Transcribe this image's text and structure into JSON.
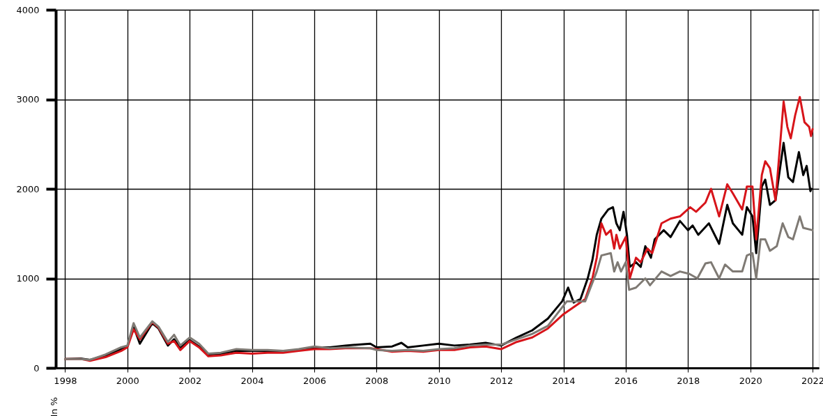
{
  "chart_data": {
    "type": "line",
    "ylabel": "In %",
    "xlim": [
      1997.7,
      2022.2
    ],
    "xticks": [
      1998,
      2000,
      2002,
      2004,
      2006,
      2008,
      2010,
      2012,
      2014,
      2016,
      2018,
      2020,
      2022
    ],
    "ylim": [
      0,
      4000
    ],
    "yticks": [
      0,
      1000,
      2000,
      3000,
      4000
    ],
    "grid": true,
    "marker": "none",
    "line_style": "solid",
    "series": [
      {
        "color": "#000000",
        "x": [
          1998.0,
          1998.5,
          1998.8,
          1999.3,
          1999.8,
          2000.0,
          2000.2,
          2000.4,
          2000.8,
          2001.0,
          2001.3,
          2001.5,
          2001.7,
          2002.0,
          2002.3,
          2002.6,
          2003.0,
          2003.5,
          2004.0,
          2004.5,
          2005.0,
          2005.5,
          2006.0,
          2006.5,
          2007.0,
          2007.8,
          2008.0,
          2008.5,
          2008.8,
          2009.0,
          2009.5,
          2010.0,
          2010.5,
          2011.0,
          2011.5,
          2012.0,
          2012.5,
          2013.0,
          2013.5,
          2013.96,
          2014.15,
          2014.33,
          2014.55,
          2014.78,
          2014.93,
          2015.07,
          2015.22,
          2015.44,
          2015.59,
          2015.7,
          2015.81,
          2015.93,
          2016.04,
          2016.13,
          2016.33,
          2016.48,
          2016.63,
          2016.81,
          2016.93,
          2017.22,
          2017.44,
          2017.74,
          2018.0,
          2018.15,
          2018.33,
          2018.67,
          2019.0,
          2019.26,
          2019.44,
          2019.74,
          2019.89,
          2020.07,
          2020.19,
          2020.37,
          2020.48,
          2020.63,
          2020.81,
          2021.07,
          2021.22,
          2021.37,
          2021.56,
          2021.7,
          2021.81,
          2021.93,
          2021.96
        ],
        "values": [
          100,
          105,
          90,
          140,
          210,
          240,
          460,
          270,
          500,
          440,
          250,
          320,
          230,
          310,
          240,
          150,
          160,
          190,
          190,
          190,
          180,
          200,
          230,
          230,
          250,
          270,
          230,
          240,
          280,
          230,
          250,
          270,
          250,
          260,
          280,
          250,
          340,
          420,
          550,
          744,
          897,
          730,
          770,
          1000,
          1205,
          1487,
          1667,
          1769,
          1795,
          1615,
          1538,
          1744,
          1487,
          1128,
          1180,
          1128,
          1359,
          1231,
          1436,
          1538,
          1462,
          1641,
          1538,
          1590,
          1487,
          1615,
          1385,
          1821,
          1615,
          1487,
          1795,
          1692,
          1282,
          2026,
          2103,
          1821,
          1872,
          2513,
          2128,
          2077,
          2410,
          2154,
          2256,
          1974,
          2000
        ]
      },
      {
        "color": "#d7141a",
        "x": [
          1998.0,
          1998.5,
          1998.8,
          1999.3,
          1999.8,
          2000.0,
          2000.2,
          2000.4,
          2000.8,
          2001.0,
          2001.3,
          2001.5,
          2001.7,
          2002.0,
          2002.3,
          2002.6,
          2003.0,
          2003.5,
          2004.0,
          2004.5,
          2005.0,
          2005.5,
          2006.0,
          2006.5,
          2007.0,
          2007.8,
          2008.0,
          2008.5,
          2009.0,
          2009.5,
          2010.0,
          2010.5,
          2011.0,
          2011.5,
          2012.0,
          2012.5,
          2013.0,
          2013.5,
          2014.0,
          2014.7,
          2014.93,
          2015.07,
          2015.22,
          2015.37,
          2015.52,
          2015.63,
          2015.7,
          2015.81,
          2016.0,
          2016.13,
          2016.33,
          2016.48,
          2016.7,
          2016.85,
          2017.15,
          2017.44,
          2017.74,
          2018.07,
          2018.26,
          2018.56,
          2018.74,
          2019.0,
          2019.26,
          2019.44,
          2019.74,
          2019.89,
          2020.07,
          2020.19,
          2020.37,
          2020.48,
          2020.63,
          2020.81,
          2021.07,
          2021.19,
          2021.3,
          2021.44,
          2021.59,
          2021.74,
          2021.89,
          2021.95,
          2022.0
        ],
        "values": [
          100,
          100,
          80,
          120,
          190,
          230,
          430,
          320,
          510,
          450,
          270,
          300,
          200,
          300,
          230,
          130,
          140,
          170,
          160,
          170,
          170,
          190,
          210,
          210,
          220,
          220,
          210,
          180,
          190,
          180,
          200,
          200,
          230,
          240,
          210,
          290,
          340,
          440,
          600,
          769,
          1000,
          1231,
          1615,
          1487,
          1538,
          1333,
          1487,
          1333,
          1462,
          1000,
          1231,
          1180,
          1333,
          1282,
          1615,
          1667,
          1692,
          1795,
          1744,
          1846,
          2000,
          1692,
          2051,
          1949,
          1769,
          2026,
          2026,
          1436,
          2154,
          2308,
          2231,
          1872,
          2974,
          2692,
          2564,
          2821,
          3026,
          2744,
          2692,
          2590,
          2667
        ]
      },
      {
        "color": "#7f7a74",
        "x": [
          1998.0,
          1998.5,
          1998.8,
          1999.3,
          1999.8,
          2000.0,
          2000.2,
          2000.4,
          2000.8,
          2001.0,
          2001.3,
          2001.5,
          2001.7,
          2002.0,
          2002.3,
          2002.6,
          2003.0,
          2003.5,
          2004.0,
          2004.5,
          2005.0,
          2005.5,
          2006.0,
          2006.5,
          2007.0,
          2007.8,
          2008.0,
          2008.5,
          2009.0,
          2009.5,
          2010.0,
          2010.5,
          2011.0,
          2011.5,
          2012.0,
          2012.5,
          2013.0,
          2013.5,
          2014.11,
          2014.7,
          2015.07,
          2015.22,
          2015.52,
          2015.63,
          2015.74,
          2015.85,
          2016.0,
          2016.11,
          2016.33,
          2016.63,
          2016.78,
          2017.15,
          2017.44,
          2017.74,
          2018.04,
          2018.3,
          2018.56,
          2018.74,
          2019.0,
          2019.19,
          2019.44,
          2019.74,
          2019.89,
          2020.07,
          2020.19,
          2020.33,
          2020.48,
          2020.63,
          2020.85,
          2021.04,
          2021.22,
          2021.37,
          2021.59,
          2021.7,
          2022.0
        ],
        "values": [
          100,
          100,
          90,
          150,
          230,
          250,
          500,
          340,
          520,
          460,
          290,
          370,
          250,
          340,
          270,
          160,
          170,
          210,
          200,
          200,
          190,
          210,
          240,
          220,
          230,
          220,
          200,
          190,
          200,
          190,
          210,
          220,
          250,
          260,
          260,
          320,
          380,
          470,
          744,
          744,
          1077,
          1256,
          1282,
          1077,
          1180,
          1077,
          1180,
          872,
          897,
          1000,
          923,
          1077,
          1026,
          1077,
          1051,
          1000,
          1167,
          1180,
          1000,
          1154,
          1077,
          1077,
          1256,
          1282,
          1000,
          1436,
          1436,
          1308,
          1359,
          1615,
          1462,
          1436,
          1692,
          1564,
          1538
        ]
      }
    ]
  }
}
